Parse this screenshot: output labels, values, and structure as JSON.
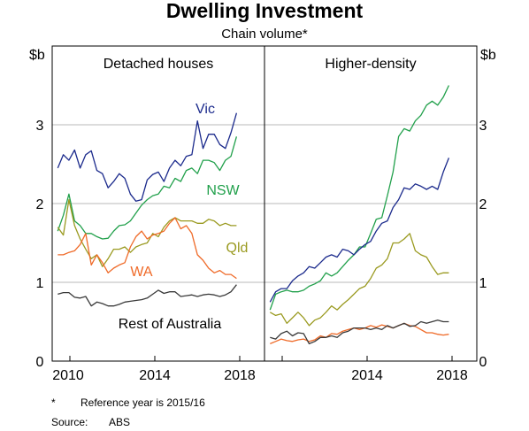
{
  "chart_data": {
    "type": "line",
    "title": "Dwelling Investment",
    "subtitle": "Chain volume*",
    "y_unit": "$b",
    "ylim": [
      0,
      4
    ],
    "yticks": [
      "0",
      "1",
      "2",
      "3"
    ],
    "xlim": [
      2009.75,
      2019.25
    ],
    "xticks": [
      "2010",
      "2014",
      "2018"
    ],
    "grid": true,
    "footnotes": {
      "note_marker": "*",
      "note_text": "Reference year is 2015/16",
      "source_label": "Source:",
      "source_text": "ABS"
    },
    "panels": [
      {
        "title": "Detached houses",
        "x_tick_labels": [
          "2010",
          "2014",
          "2018"
        ],
        "series": [
          {
            "name": "Vic",
            "color": "#1b2a8c",
            "x": [
              2010.0,
              2010.25,
              2010.5,
              2010.75,
              2011.0,
              2011.25,
              2011.5,
              2011.75,
              2012.0,
              2012.25,
              2012.5,
              2012.75,
              2013.0,
              2013.25,
              2013.5,
              2013.75,
              2014.0,
              2014.25,
              2014.5,
              2014.75,
              2015.0,
              2015.25,
              2015.5,
              2015.75,
              2016.0,
              2016.25,
              2016.5,
              2016.75,
              2017.0,
              2017.25,
              2017.5,
              2017.75,
              2018.0
            ],
            "y": [
              2.45,
              2.62,
              2.55,
              2.68,
              2.45,
              2.62,
              2.67,
              2.42,
              2.38,
              2.2,
              2.28,
              2.38,
              2.32,
              2.12,
              2.03,
              2.05,
              2.3,
              2.37,
              2.4,
              2.28,
              2.45,
              2.55,
              2.48,
              2.6,
              2.62,
              3.05,
              2.7,
              2.88,
              2.88,
              2.75,
              2.7,
              2.9,
              3.15
            ]
          },
          {
            "name": "NSW",
            "color": "#21a04b",
            "x": [
              2010.0,
              2010.25,
              2010.5,
              2010.75,
              2011.0,
              2011.25,
              2011.5,
              2011.75,
              2012.0,
              2012.25,
              2012.5,
              2012.75,
              2013.0,
              2013.25,
              2013.5,
              2013.75,
              2014.0,
              2014.25,
              2014.5,
              2014.75,
              2015.0,
              2015.25,
              2015.5,
              2015.75,
              2016.0,
              2016.25,
              2016.5,
              2016.75,
              2017.0,
              2017.25,
              2017.5,
              2017.75,
              2018.0
            ],
            "y": [
              1.65,
              1.85,
              2.12,
              1.78,
              1.72,
              1.62,
              1.62,
              1.58,
              1.55,
              1.56,
              1.65,
              1.72,
              1.73,
              1.78,
              1.88,
              1.98,
              2.05,
              2.1,
              2.12,
              2.22,
              2.2,
              2.32,
              2.28,
              2.42,
              2.45,
              2.38,
              2.55,
              2.55,
              2.52,
              2.42,
              2.55,
              2.6,
              2.85
            ]
          },
          {
            "name": "Qld",
            "color": "#9a9a20",
            "x": [
              2010.0,
              2010.25,
              2010.5,
              2010.75,
              2011.0,
              2011.25,
              2011.5,
              2011.75,
              2012.0,
              2012.25,
              2012.5,
              2012.75,
              2013.0,
              2013.25,
              2013.5,
              2013.75,
              2014.0,
              2014.25,
              2014.5,
              2014.75,
              2015.0,
              2015.25,
              2015.5,
              2015.75,
              2016.0,
              2016.25,
              2016.5,
              2016.75,
              2017.0,
              2017.25,
              2017.5,
              2017.75,
              2018.0
            ],
            "y": [
              1.7,
              1.6,
              2.05,
              1.72,
              1.55,
              1.42,
              1.3,
              1.35,
              1.2,
              1.3,
              1.42,
              1.42,
              1.45,
              1.38,
              1.45,
              1.48,
              1.5,
              1.62,
              1.58,
              1.7,
              1.78,
              1.82,
              1.78,
              1.78,
              1.78,
              1.75,
              1.75,
              1.8,
              1.78,
              1.72,
              1.75,
              1.72,
              1.72
            ]
          },
          {
            "name": "WA",
            "color": "#ef6a28",
            "x": [
              2010.0,
              2010.25,
              2010.5,
              2010.75,
              2011.0,
              2011.25,
              2011.5,
              2011.75,
              2012.0,
              2012.25,
              2012.5,
              2012.75,
              2013.0,
              2013.25,
              2013.5,
              2013.75,
              2014.0,
              2014.25,
              2014.5,
              2014.75,
              2015.0,
              2015.25,
              2015.5,
              2015.75,
              2016.0,
              2016.25,
              2016.5,
              2016.75,
              2017.0,
              2017.25,
              2017.5,
              2017.75,
              2018.0
            ],
            "y": [
              1.35,
              1.35,
              1.38,
              1.4,
              1.48,
              1.62,
              1.22,
              1.35,
              1.25,
              1.12,
              1.18,
              1.22,
              1.25,
              1.45,
              1.58,
              1.65,
              1.55,
              1.6,
              1.62,
              1.65,
              1.75,
              1.82,
              1.68,
              1.72,
              1.62,
              1.35,
              1.28,
              1.18,
              1.12,
              1.15,
              1.1,
              1.1,
              1.05
            ]
          },
          {
            "name": "Rest of Australia",
            "color": "#3a3a3a",
            "x": [
              2010.0,
              2010.25,
              2010.5,
              2010.75,
              2011.0,
              2011.25,
              2011.5,
              2011.75,
              2012.0,
              2012.25,
              2012.5,
              2012.75,
              2013.0,
              2013.25,
              2013.5,
              2013.75,
              2014.0,
              2014.25,
              2014.5,
              2014.75,
              2015.0,
              2015.25,
              2015.5,
              2015.75,
              2016.0,
              2016.25,
              2016.5,
              2016.75,
              2017.0,
              2017.25,
              2017.5,
              2017.75,
              2018.0
            ],
            "y": [
              0.85,
              0.87,
              0.87,
              0.81,
              0.8,
              0.82,
              0.7,
              0.75,
              0.73,
              0.7,
              0.7,
              0.72,
              0.75,
              0.76,
              0.77,
              0.78,
              0.8,
              0.85,
              0.9,
              0.86,
              0.88,
              0.88,
              0.82,
              0.83,
              0.84,
              0.82,
              0.84,
              0.85,
              0.84,
              0.82,
              0.84,
              0.88,
              0.97
            ]
          }
        ]
      },
      {
        "title": "Higher-density",
        "x_tick_labels": [
          "",
          "2014",
          "2018"
        ],
        "series": [
          {
            "name": "",
            "color": "#21a04b",
            "x": [
              2010.0,
              2010.25,
              2010.5,
              2010.75,
              2011.0,
              2011.25,
              2011.5,
              2011.75,
              2012.0,
              2012.25,
              2012.5,
              2012.75,
              2013.0,
              2013.25,
              2013.5,
              2013.75,
              2014.0,
              2014.25,
              2014.5,
              2014.75,
              2015.0,
              2015.25,
              2015.5,
              2015.75,
              2016.0,
              2016.25,
              2016.5,
              2016.75,
              2017.0,
              2017.25,
              2017.5,
              2017.75,
              2018.0
            ],
            "y": [
              0.65,
              0.85,
              0.88,
              0.9,
              0.88,
              0.88,
              0.9,
              0.95,
              0.98,
              1.02,
              1.12,
              1.08,
              1.12,
              1.2,
              1.28,
              1.35,
              1.45,
              1.45,
              1.62,
              1.8,
              1.82,
              2.1,
              2.4,
              2.85,
              2.95,
              2.92,
              3.05,
              3.12,
              3.25,
              3.3,
              3.25,
              3.35,
              3.5
            ]
          },
          {
            "name": "",
            "color": "#1b2a8c",
            "x": [
              2010.0,
              2010.25,
              2010.5,
              2010.75,
              2011.0,
              2011.25,
              2011.5,
              2011.75,
              2012.0,
              2012.25,
              2012.5,
              2012.75,
              2013.0,
              2013.25,
              2013.5,
              2013.75,
              2014.0,
              2014.25,
              2014.5,
              2014.75,
              2015.0,
              2015.25,
              2015.5,
              2015.75,
              2016.0,
              2016.25,
              2016.5,
              2016.75,
              2017.0,
              2017.25,
              2017.5,
              2017.75,
              2018.0
            ],
            "y": [
              0.75,
              0.88,
              0.92,
              0.92,
              1.02,
              1.08,
              1.12,
              1.2,
              1.18,
              1.25,
              1.32,
              1.35,
              1.32,
              1.42,
              1.4,
              1.35,
              1.42,
              1.48,
              1.52,
              1.65,
              1.75,
              1.78,
              1.95,
              2.05,
              2.2,
              2.18,
              2.25,
              2.22,
              2.18,
              2.22,
              2.18,
              2.4,
              2.58
            ]
          },
          {
            "name": "",
            "color": "#9a9a20",
            "x": [
              2010.0,
              2010.25,
              2010.5,
              2010.75,
              2011.0,
              2011.25,
              2011.5,
              2011.75,
              2012.0,
              2012.25,
              2012.5,
              2012.75,
              2013.0,
              2013.25,
              2013.5,
              2013.75,
              2014.0,
              2014.25,
              2014.5,
              2014.75,
              2015.0,
              2015.25,
              2015.5,
              2015.75,
              2016.0,
              2016.25,
              2016.5,
              2016.75,
              2017.0,
              2017.25,
              2017.5,
              2017.75,
              2018.0
            ],
            "y": [
              0.62,
              0.58,
              0.6,
              0.48,
              0.55,
              0.62,
              0.55,
              0.45,
              0.52,
              0.55,
              0.62,
              0.7,
              0.65,
              0.72,
              0.78,
              0.85,
              0.92,
              0.95,
              1.05,
              1.18,
              1.22,
              1.3,
              1.5,
              1.5,
              1.55,
              1.62,
              1.4,
              1.35,
              1.32,
              1.2,
              1.1,
              1.12,
              1.12
            ]
          },
          {
            "name": "",
            "color": "#ef6a28",
            "x": [
              2010.0,
              2010.25,
              2010.5,
              2010.75,
              2011.0,
              2011.25,
              2011.5,
              2011.75,
              2012.0,
              2012.25,
              2012.5,
              2012.75,
              2013.0,
              2013.25,
              2013.5,
              2013.75,
              2014.0,
              2014.25,
              2014.5,
              2014.75,
              2015.0,
              2015.25,
              2015.5,
              2015.75,
              2016.0,
              2016.25,
              2016.5,
              2016.75,
              2017.0,
              2017.25,
              2017.5,
              2017.75,
              2018.0
            ],
            "y": [
              0.22,
              0.25,
              0.28,
              0.26,
              0.25,
              0.27,
              0.28,
              0.25,
              0.27,
              0.32,
              0.3,
              0.35,
              0.34,
              0.38,
              0.4,
              0.42,
              0.4,
              0.42,
              0.45,
              0.43,
              0.46,
              0.44,
              0.42,
              0.45,
              0.48,
              0.45,
              0.44,
              0.4,
              0.36,
              0.36,
              0.34,
              0.33,
              0.34
            ]
          },
          {
            "name": "",
            "color": "#3a3a3a",
            "x": [
              2010.0,
              2010.25,
              2010.5,
              2010.75,
              2011.0,
              2011.25,
              2011.5,
              2011.75,
              2012.0,
              2012.25,
              2012.5,
              2012.75,
              2013.0,
              2013.25,
              2013.5,
              2013.75,
              2014.0,
              2014.25,
              2014.5,
              2014.75,
              2015.0,
              2015.25,
              2015.5,
              2015.75,
              2016.0,
              2016.25,
              2016.5,
              2016.75,
              2017.0,
              2017.25,
              2017.5,
              2017.75,
              2018.0
            ],
            "y": [
              0.3,
              0.28,
              0.35,
              0.38,
              0.32,
              0.36,
              0.35,
              0.22,
              0.25,
              0.3,
              0.3,
              0.32,
              0.3,
              0.36,
              0.38,
              0.42,
              0.42,
              0.42,
              0.4,
              0.42,
              0.4,
              0.45,
              0.42,
              0.45,
              0.48,
              0.44,
              0.45,
              0.5,
              0.48,
              0.5,
              0.52,
              0.5,
              0.5
            ]
          }
        ]
      }
    ]
  }
}
